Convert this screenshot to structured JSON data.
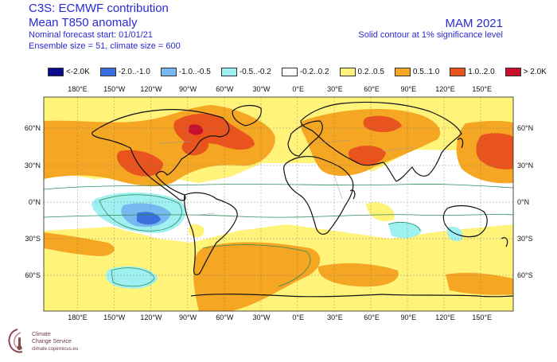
{
  "header": {
    "title": "C3S: ECMWF contribution",
    "variable": "Mean T850 anomaly",
    "forecast_start": "Nominal forecast start: 01/01/21",
    "ensemble": "Ensemble size = 51, climate size = 600",
    "season": "MAM 2021",
    "significance": "Solid contour at 1% significance level"
  },
  "legend": [
    {
      "label": "<-2.0K",
      "color": "#0a0a8c"
    },
    {
      "label": "-2.0..-1.0",
      "color": "#3c6fe0"
    },
    {
      "label": "-1.0..-0.5",
      "color": "#78b8f0"
    },
    {
      "label": "-0.5..-0.2",
      "color": "#9ff0f0"
    },
    {
      "label": "-0.2..0.2",
      "color": "#ffffff"
    },
    {
      "label": "0.2..0.5",
      "color": "#fff37a"
    },
    {
      "label": "0.5..1.0",
      "color": "#f5a623"
    },
    {
      "label": "1.0..2.0",
      "color": "#e8531e"
    },
    {
      "label": "> 2.0K",
      "color": "#c8102e"
    }
  ],
  "lon_ticks": [
    "180°E",
    "150°W",
    "120°W",
    "90°W",
    "60°W",
    "30°W",
    "0°E",
    "30°E",
    "60°E",
    "90°E",
    "120°E",
    "150°E"
  ],
  "lat_ticks": [
    "60°N",
    "30°N",
    "0°N",
    "30°S",
    "60°S"
  ],
  "logo": {
    "name_line1": "Climate",
    "name_line2": "Change Service",
    "url": "climate.copernicus.eu"
  }
}
